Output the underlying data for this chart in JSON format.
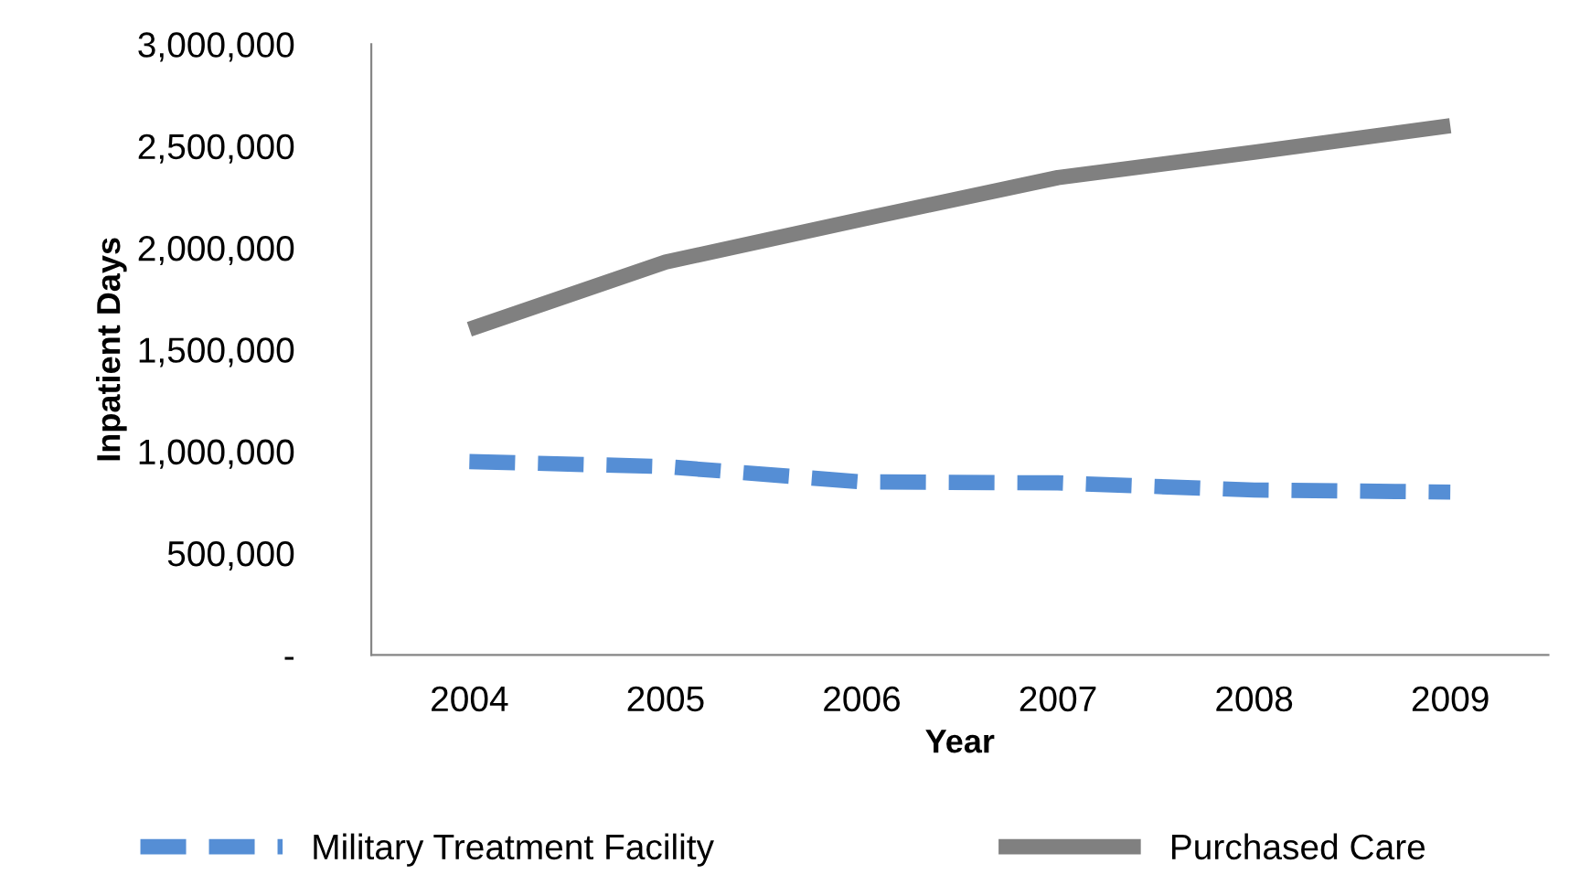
{
  "chart_data": {
    "type": "line",
    "xlabel": "Year",
    "ylabel": "Inpatient Days",
    "categories": [
      "2004",
      "2005",
      "2006",
      "2007",
      "2008",
      "2009"
    ],
    "series": [
      {
        "name": "Military Treatment Facility",
        "color": "#558ed5",
        "line_style": "dashed",
        "values": [
          950000,
          925000,
          850000,
          845000,
          810000,
          800000
        ]
      },
      {
        "name": "Purchased Care",
        "color": "#808080",
        "line_style": "solid",
        "values": [
          1600000,
          1930000,
          2140000,
          2345000,
          2470000,
          2600000
        ]
      }
    ],
    "ylim": [
      0,
      3000000
    ],
    "yticks": [
      {
        "value": 0,
        "label": "-"
      },
      {
        "value": 500000,
        "label": "500,000"
      },
      {
        "value": 1000000,
        "label": "1,000,000"
      },
      {
        "value": 1500000,
        "label": "1,500,000"
      },
      {
        "value": 2000000,
        "label": "2,000,000"
      },
      {
        "value": 2500000,
        "label": "2,500,000"
      },
      {
        "value": 3000000,
        "label": "3,000,000"
      }
    ],
    "grid": false,
    "legend": "bottom",
    "marker": "none"
  }
}
